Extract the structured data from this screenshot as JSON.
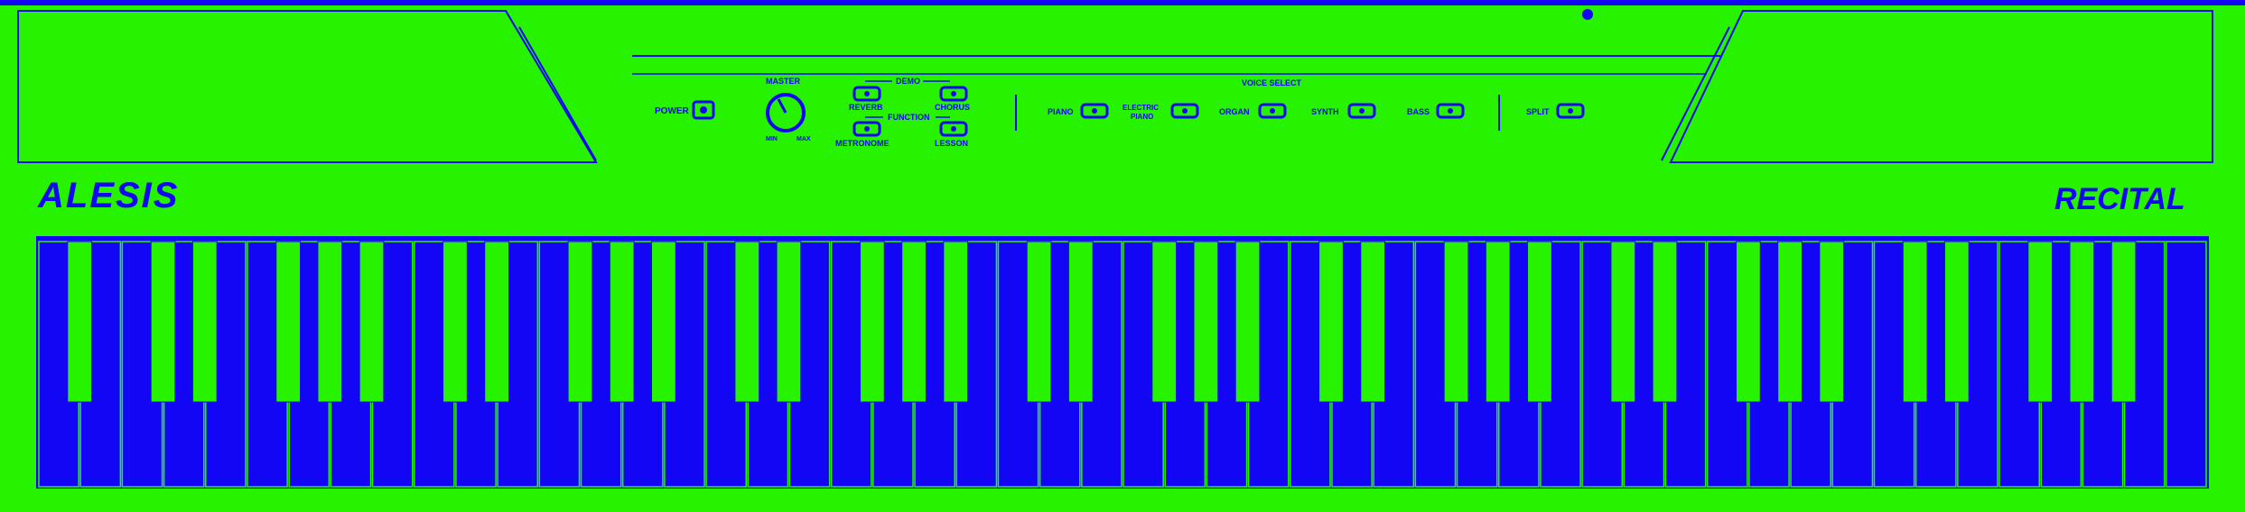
{
  "brand": {
    "logo": "ALESIS",
    "model": "RECITAL"
  },
  "controls": {
    "power": "POWER",
    "master": "MASTER",
    "min": "MIN",
    "max": "MAX",
    "demo": "DEMO",
    "reverb": "REVERB",
    "chorus": "CHORUS",
    "function": "FUNCTION",
    "metronome": "METRONOME",
    "lesson": "LESSON",
    "voice_select": "VOICE SELECT",
    "piano": "PIANO",
    "electric_piano_1": "ELECTRIC",
    "electric_piano_2": "PIANO",
    "organ": "ORGAN",
    "synth": "SYNTH",
    "bass": "BASS",
    "split": "SPLIT"
  },
  "colors": {
    "body": "#27f200",
    "ink": "#1206f5"
  },
  "keyboard": {
    "white_key_count": 52,
    "black_key_count": 36
  },
  "icons": [
    "power-button-icon",
    "master-volume-knob-icon"
  ]
}
